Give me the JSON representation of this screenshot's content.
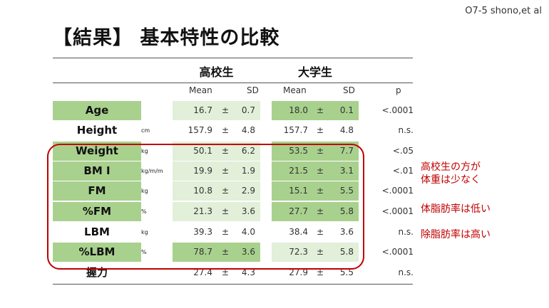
{
  "corner_label": "O7-5 shono,et al",
  "title": "【結果】 基本特性の比較",
  "groups": {
    "highschool": "高校生",
    "university": "大学生"
  },
  "headers": {
    "mean": "Mean",
    "sd": "SD",
    "p": "p"
  },
  "pm_symbol": "±",
  "rows": [
    {
      "label": "Age",
      "unit": "",
      "hs_mean": "16.7",
      "hs_sd": "0.7",
      "un_mean": "18.0",
      "un_sd": "0.1",
      "p": "<.0001"
    },
    {
      "label": "Height",
      "unit": "cm",
      "hs_mean": "157.9",
      "hs_sd": "4.8",
      "un_mean": "157.7",
      "un_sd": "4.8",
      "p": "n.s."
    },
    {
      "label": "Weight",
      "unit": "kg",
      "hs_mean": "50.1",
      "hs_sd": "6.2",
      "un_mean": "53.5",
      "un_sd": "7.7",
      "p": "<.05"
    },
    {
      "label": "BM I",
      "unit": "kg/m/m",
      "hs_mean": "19.9",
      "hs_sd": "1.9",
      "un_mean": "21.5",
      "un_sd": "3.1",
      "p": "<.01"
    },
    {
      "label": "FM",
      "unit": "kg",
      "hs_mean": "10.8",
      "hs_sd": "2.9",
      "un_mean": "15.1",
      "un_sd": "5.5",
      "p": "<.0001"
    },
    {
      "label": "%FM",
      "unit": "%",
      "hs_mean": "21.3",
      "hs_sd": "3.6",
      "un_mean": "27.7",
      "un_sd": "5.8",
      "p": "<.0001"
    },
    {
      "label": "LBM",
      "unit": "kg",
      "hs_mean": "39.3",
      "hs_sd": "4.0",
      "un_mean": "38.4",
      "un_sd": "3.6",
      "p": "n.s."
    },
    {
      "label": "%LBM",
      "unit": "%",
      "hs_mean": "78.7",
      "hs_sd": "3.6",
      "un_mean": "72.3",
      "un_sd": "5.8",
      "p": "<.0001"
    },
    {
      "label": "握力",
      "unit": "",
      "hs_mean": "27.4",
      "hs_sd": "4.3",
      "un_mean": "27.9",
      "un_sd": "5.5",
      "p": "n.s."
    }
  ],
  "notes": {
    "weight_line1": "高校生の方が",
    "weight_line2": "体重は少なく",
    "fat": "体脂肪率は低い",
    "lean": "除脂肪率は高い"
  },
  "colors": {
    "highlight_dark": "#a9d18e",
    "highlight_light": "#e2efd9",
    "accent_red": "#c00000"
  }
}
